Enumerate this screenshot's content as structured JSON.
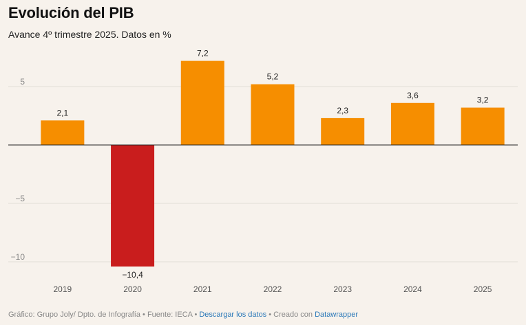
{
  "chart_data": {
    "type": "bar",
    "title": "Evolución del PIB",
    "subtitle": "Avance 4º trimestre 2025. Datos en %",
    "categories": [
      "2019",
      "2020",
      "2021",
      "2022",
      "2023",
      "2024",
      "2025"
    ],
    "values": [
      2.1,
      -10.4,
      7.2,
      5.2,
      2.3,
      3.6,
      3.2
    ],
    "value_labels": [
      "2,1",
      "−10,4",
      "7,2",
      "5,2",
      "2,3",
      "3,6",
      "3,2"
    ],
    "ylim": [
      -11,
      8
    ],
    "yticks": [
      5,
      0,
      -5,
      -10
    ],
    "ytick_labels": [
      "5",
      "",
      "−5",
      "−10"
    ],
    "grid": true,
    "xlabel": "",
    "ylabel": "",
    "colors": {
      "positive": "#f68e00",
      "negative": "#c91d1d"
    }
  },
  "footer": {
    "credit": "Gráfico: Grupo Joly/ Dpto. de Infografía",
    "source": "Fuente: IECA",
    "download_label": "Descargar los datos",
    "created_with": "Creado con",
    "tool": "Datawrapper",
    "separator": " • "
  }
}
